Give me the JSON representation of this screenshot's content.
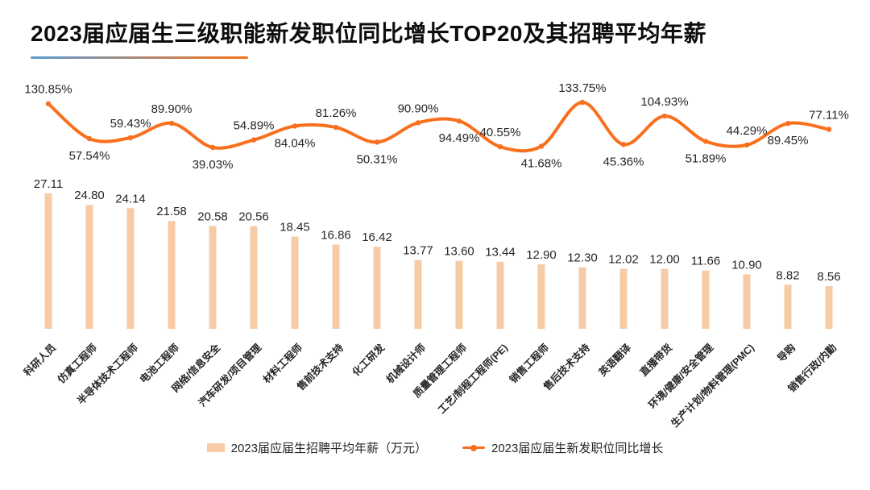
{
  "title": "2023届应届生三级职能新发职位同比增长TOP20及其招聘平均年薪",
  "colors": {
    "bar": "#F7CBA6",
    "line": "#F8701D",
    "text": "#262626",
    "underline_gradient_from": "#5B9BD5",
    "underline_gradient_to": "#F97316"
  },
  "legend": {
    "bar_label": "2023届应届生招聘平均年薪（万元）",
    "line_label": "2023届应届生新发职位同比增长"
  },
  "chart_data": {
    "type": "combo-bar-line",
    "title": "2023届应届生三级职能新发职位同比增长TOP20及其招聘平均年薪",
    "categories": [
      "科研人员",
      "仿真工程师",
      "半导体技术工程师",
      "电池工程师",
      "网络/信息安全",
      "汽车研发/项目管理",
      "材料工程师",
      "售前技术支持",
      "化工研发",
      "机械设计师",
      "质量管理工程师",
      "工艺/制程工程师(PE)",
      "销售工程师",
      "售后技术支持",
      "英语翻译",
      "直播带货",
      "环境/健康/安全管理",
      "生产计划/物料管理(PMC)",
      "导购",
      "销售行政/内勤"
    ],
    "series": [
      {
        "name": "2023届应届生招聘平均年薪（万元）",
        "type": "bar",
        "unit": "万元",
        "values": [
          27.11,
          24.8,
          24.14,
          21.58,
          20.58,
          20.56,
          18.45,
          16.86,
          16.42,
          13.77,
          13.6,
          13.44,
          12.9,
          12.3,
          12.02,
          12.0,
          11.66,
          10.9,
          8.82,
          8.56
        ]
      },
      {
        "name": "2023届应届生新发职位同比增长",
        "type": "line",
        "unit": "%",
        "values": [
          130.85,
          57.54,
          59.43,
          89.9,
          39.03,
          54.89,
          84.04,
          81.26,
          50.31,
          90.9,
          94.49,
          40.55,
          41.68,
          133.75,
          45.36,
          104.93,
          51.89,
          44.29,
          89.45,
          77.11
        ]
      }
    ],
    "layout": {
      "legend_position": "bottom",
      "grid": false,
      "axes_visible": false,
      "value_labels": true,
      "category_label_rotation_deg": 45,
      "line_label_side": [
        "above",
        "below",
        "above",
        "above",
        "below",
        "above",
        "below",
        "above",
        "below",
        "above",
        "below",
        "above",
        "below",
        "above",
        "below",
        "above",
        "below",
        "above",
        "below",
        "above"
      ]
    }
  }
}
